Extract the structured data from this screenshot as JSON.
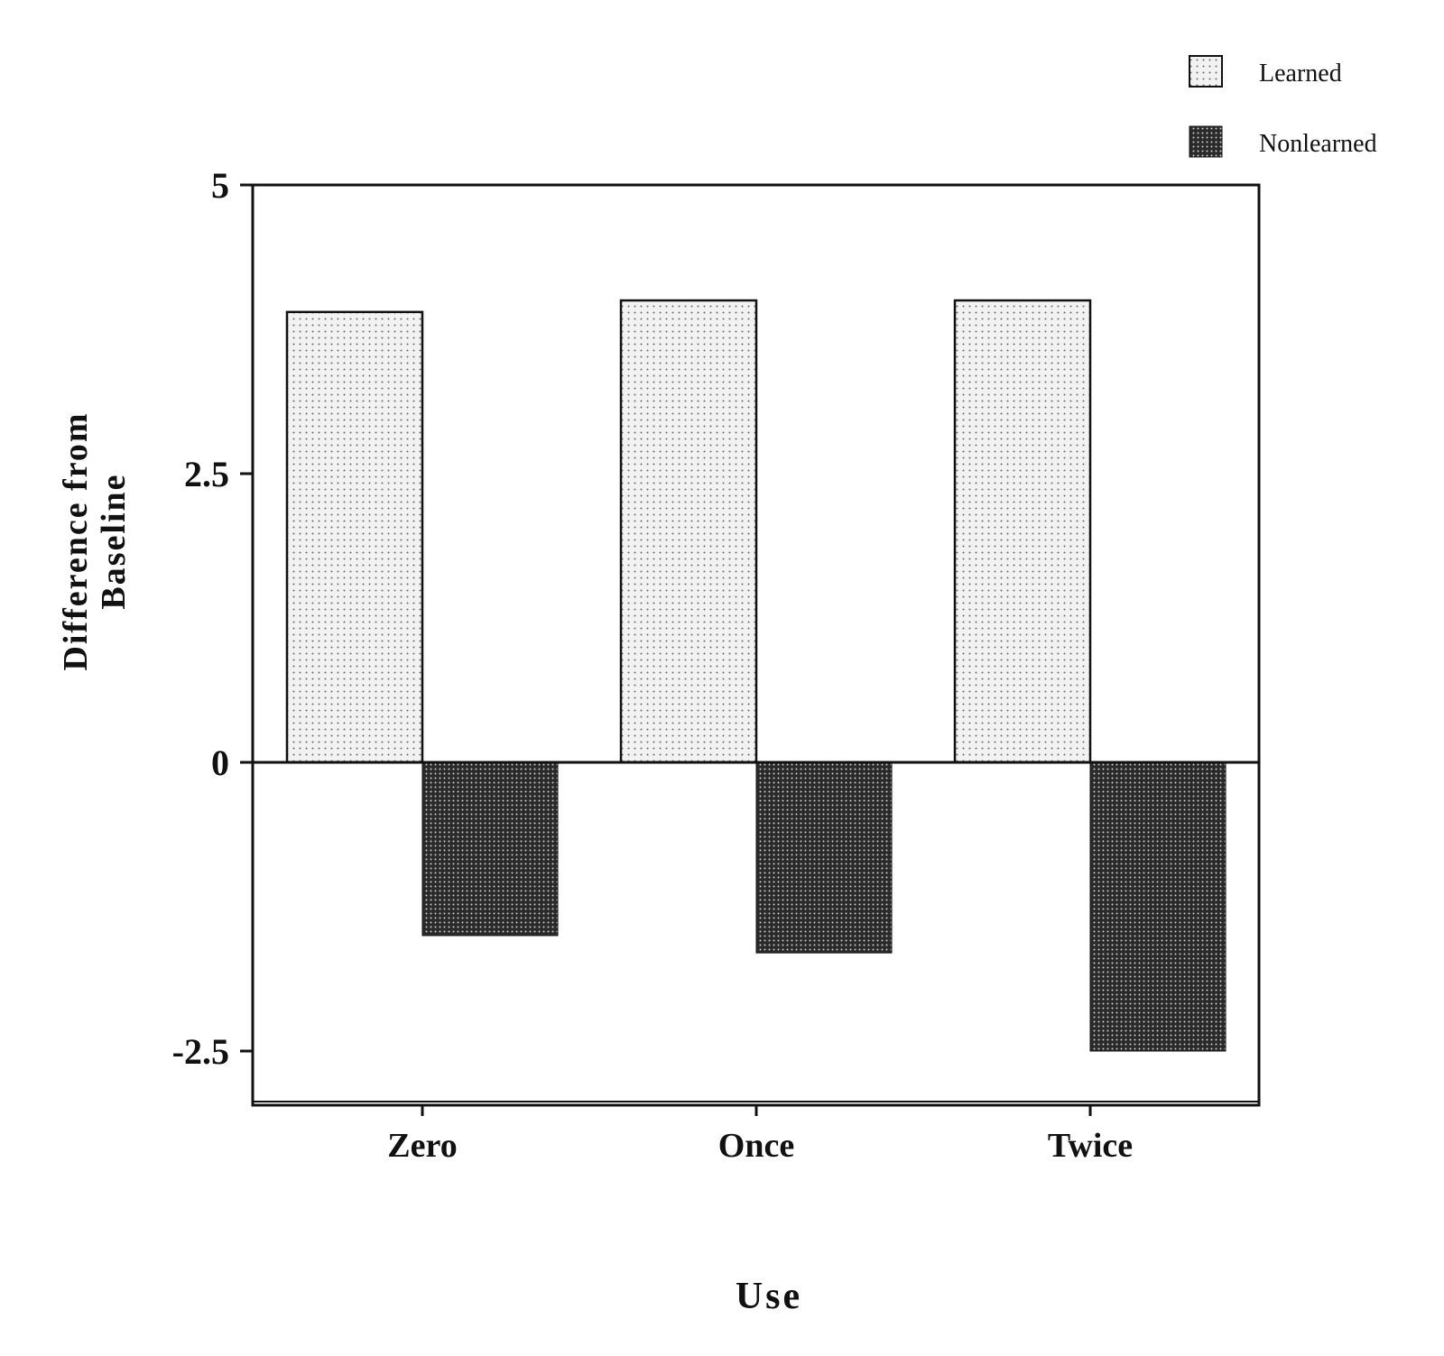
{
  "chart_data": {
    "type": "bar",
    "categories": [
      "Zero",
      "Once",
      "Twice"
    ],
    "series": [
      {
        "name": "Learned",
        "values": [
          3.9,
          4.0,
          4.0
        ],
        "pattern": "light-dots"
      },
      {
        "name": "Nonlearned",
        "values": [
          -1.5,
          -1.65,
          -2.5
        ],
        "pattern": "dark-dots"
      }
    ],
    "xlabel": "Use",
    "ylabel_lines": [
      "Difference from",
      "Baseline"
    ],
    "ylim": [
      -3,
      5
    ],
    "yticks": [
      {
        "value": 5,
        "label": "5"
      },
      {
        "value": 2.5,
        "label": "2.5"
      },
      {
        "value": 0,
        "label": "0"
      },
      {
        "value": -2.5,
        "label": "-2.5"
      }
    ],
    "grid": false,
    "legend_position": "top-right",
    "colors": {
      "learned_fill": "#f2f2f2",
      "learned_dot": "#6e6e6e",
      "nonlearned_fill": "#2a2a2a",
      "nonlearned_dot": "#cfcfcf",
      "axis": "#111111"
    }
  }
}
